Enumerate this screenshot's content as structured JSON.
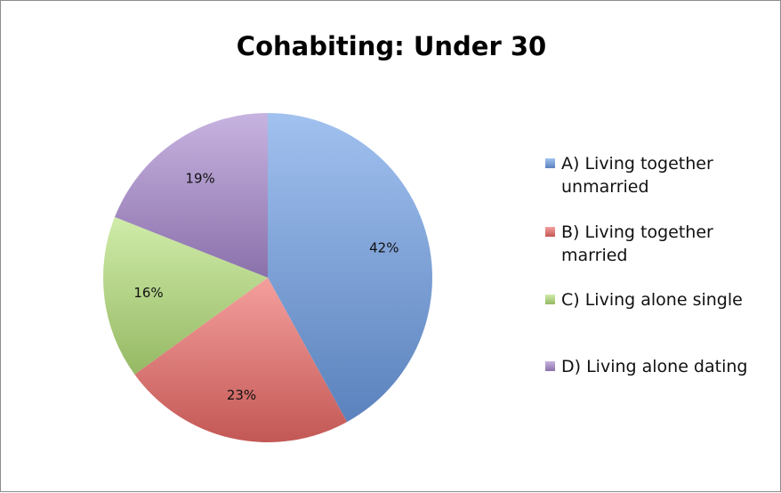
{
  "chart_data": {
    "type": "pie",
    "title": "Cohabiting: Under 30",
    "legend_position": "right",
    "slices": [
      {
        "label": "A) Living together unmarried",
        "legend_lines": [
          "A) Living together",
          "unmarried"
        ],
        "value": 42,
        "display": "42%",
        "color": "#6f9fe6"
      },
      {
        "label": "B) Living together married",
        "legend_lines": [
          "B) Living together",
          "married"
        ],
        "value": 23,
        "display": "23%",
        "color": "#ee6b68"
      },
      {
        "label": "C) Living alone single",
        "legend_lines": [
          "C) Living alone single"
        ],
        "value": 16,
        "display": "16%",
        "color": "#b6e27a"
      },
      {
        "label": "D) Living alone dating",
        "legend_lines": [
          "D) Living alone dating"
        ],
        "value": 19,
        "display": "19%",
        "color": "#a98ad0"
      }
    ]
  }
}
